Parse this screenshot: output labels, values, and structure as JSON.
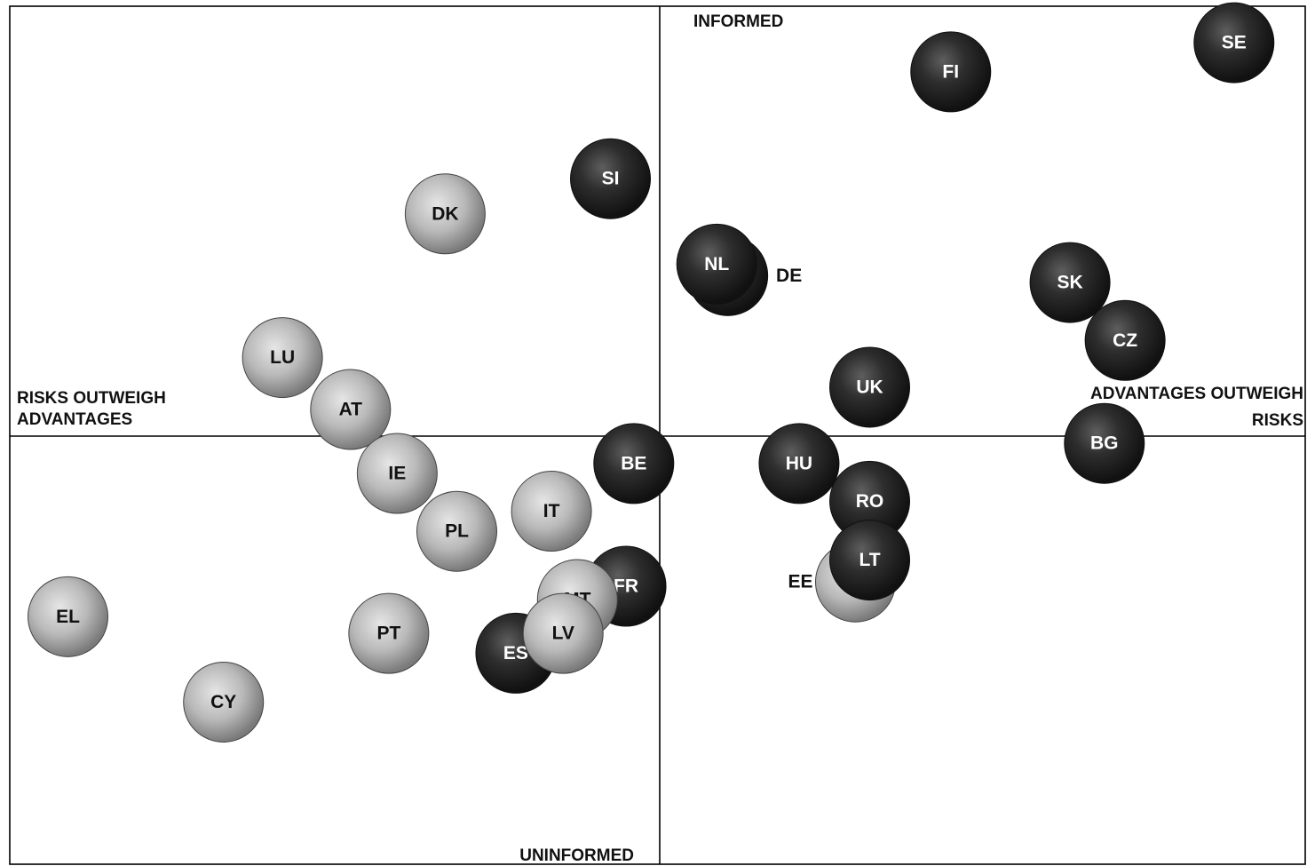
{
  "chart_data": {
    "type": "scatter",
    "quadrant_labels": {
      "top": "INFORMED",
      "bottom": "UNINFORMED",
      "left": [
        "RISKS OUTWEIGH",
        "ADVANTAGES"
      ],
      "right": [
        "ADVANTAGES OUTWEIGH",
        "RISKS"
      ]
    },
    "groups": {
      "dark": "#2b2b2b",
      "light": "#b4b4b4"
    },
    "points": [
      {
        "label": "SI",
        "x": -0.076,
        "y": 0.6,
        "group": "dark"
      },
      {
        "label": "DK",
        "x": -0.331,
        "y": 0.518,
        "group": "light"
      },
      {
        "label": "LU",
        "x": -0.582,
        "y": 0.183,
        "group": "light"
      },
      {
        "label": "AT",
        "x": -0.477,
        "y": 0.062,
        "group": "light"
      },
      {
        "label": "IE",
        "x": -0.405,
        "y": -0.087,
        "group": "light"
      },
      {
        "label": "PL",
        "x": -0.313,
        "y": -0.222,
        "group": "light"
      },
      {
        "label": "IT",
        "x": -0.167,
        "y": -0.175,
        "group": "light"
      },
      {
        "label": "BE",
        "x": -0.04,
        "y": -0.064,
        "group": "dark"
      },
      {
        "label": "FR",
        "x": -0.052,
        "y": -0.35,
        "group": "dark"
      },
      {
        "label": "MT",
        "x": -0.127,
        "y": -0.381,
        "group": "light"
      },
      {
        "label": "ES",
        "x": -0.222,
        "y": -0.506,
        "group": "dark"
      },
      {
        "label": "LV",
        "x": -0.149,
        "y": -0.46,
        "group": "light"
      },
      {
        "label": "PT",
        "x": -0.418,
        "y": -0.46,
        "group": "light"
      },
      {
        "label": "EL",
        "x": -0.913,
        "y": -0.421,
        "group": "light"
      },
      {
        "label": "CY",
        "x": -0.673,
        "y": -0.62,
        "group": "light"
      },
      {
        "label": "FI",
        "x": 0.449,
        "y": 0.849,
        "group": "dark"
      },
      {
        "label": "SE",
        "x": 0.886,
        "y": 0.917,
        "group": "dark"
      },
      {
        "label": "DE",
        "x": 0.105,
        "y": 0.374,
        "group": "dark",
        "label_side": "right"
      },
      {
        "label": "NL",
        "x": 0.088,
        "y": 0.401,
        "group": "dark"
      },
      {
        "label": "SK",
        "x": 0.633,
        "y": 0.358,
        "group": "dark"
      },
      {
        "label": "CZ",
        "x": 0.718,
        "y": 0.223,
        "group": "dark"
      },
      {
        "label": "UK",
        "x": 0.324,
        "y": 0.114,
        "group": "dark"
      },
      {
        "label": "BG",
        "x": 0.686,
        "y": -0.017,
        "group": "dark"
      },
      {
        "label": "HU",
        "x": 0.215,
        "y": -0.064,
        "group": "dark"
      },
      {
        "label": "RO",
        "x": 0.324,
        "y": -0.152,
        "group": "dark"
      },
      {
        "label": "EE",
        "x": 0.302,
        "y": -0.34,
        "group": "light",
        "label_side": "left"
      },
      {
        "label": "LT",
        "x": 0.324,
        "y": -0.289,
        "group": "dark"
      }
    ]
  }
}
